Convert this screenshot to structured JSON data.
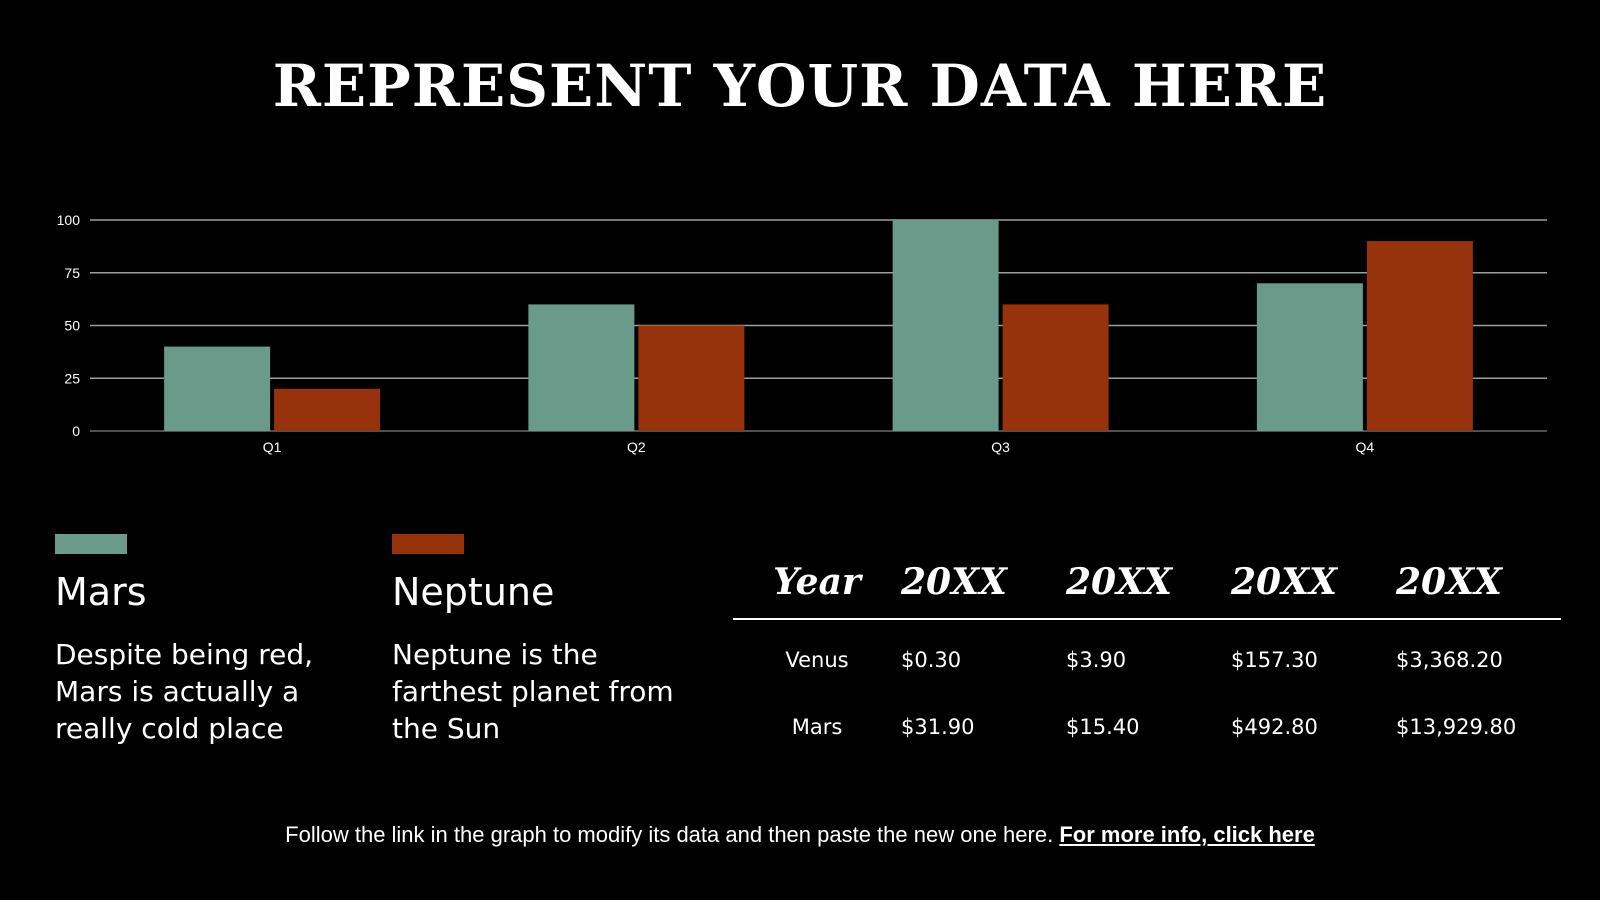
{
  "title": "REPRESENT YOUR DATA HERE",
  "colors": {
    "mars": "#6a9a8a",
    "neptune": "#96320c",
    "grid": "#9e9e9e",
    "text": "#ffffff"
  },
  "chart_data": {
    "type": "bar",
    "categories": [
      "Q1",
      "Q2",
      "Q3",
      "Q4"
    ],
    "series": [
      {
        "values": [
          40,
          60,
          100,
          70
        ]
      },
      {
        "values": [
          20,
          50,
          60,
          90
        ]
      }
    ],
    "ylim": [
      0,
      100
    ],
    "yticks": [
      0,
      25,
      50,
      75,
      100
    ],
    "grid": true
  },
  "legend": [
    {
      "name": "Mars",
      "description": "Despite being red, Mars is actually a really cold place"
    },
    {
      "name": "Neptune",
      "description": "Neptune is the farthest planet from the Sun"
    }
  ],
  "table": {
    "headers": [
      "Year",
      "20XX",
      "20XX",
      "20XX",
      "20XX"
    ],
    "rows": [
      [
        "Venus",
        "$0.30",
        "$3.90",
        "$157.30",
        "$3,368.20"
      ],
      [
        "Mars",
        "$31.90",
        "$15.40",
        "$492.80",
        "$13,929.80"
      ]
    ]
  },
  "footer": {
    "text": "Follow the link in the graph to modify its data and then paste the new one here.",
    "link_label": "For more info, click here"
  }
}
